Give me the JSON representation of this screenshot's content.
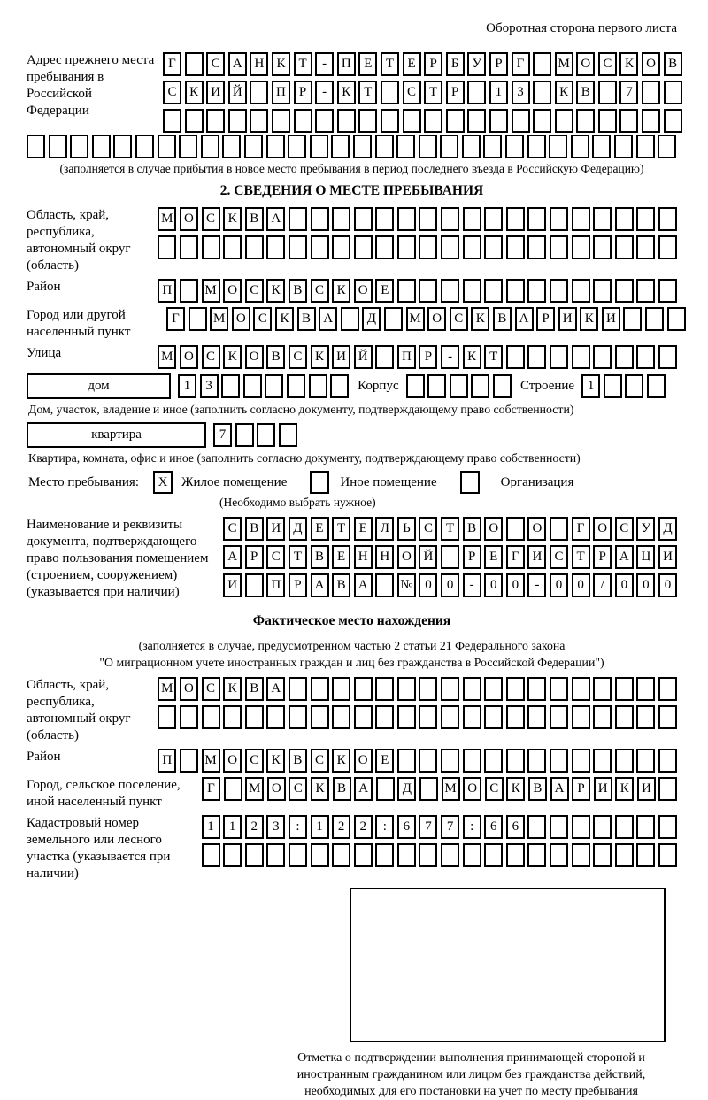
{
  "header_note": "Оборотная сторона первого листа",
  "prev_address": {
    "label": "Адрес прежнего места пребывания в Российской Федерации",
    "rows": [
      {
        "text": "Г САНКТ-ПЕТЕРБУРГ МОСКОВ",
        "count": 24
      },
      {
        "text": "СКИЙ ПР-КТ СТР 13 КВ 7",
        "count": 24
      },
      {
        "text": "",
        "count": 24
      }
    ],
    "full_row": {
      "text": "",
      "count": 30
    },
    "caption": "(заполняется в случае прибытия в новое место пребывания в период последнего въезда в Российскую Федерацию)"
  },
  "section2": {
    "title": "2. СВЕДЕНИЯ О МЕСТЕ ПРЕБЫВАНИЯ",
    "oblast": {
      "label": "Область, край, республика, автономный округ (область)",
      "rows": [
        {
          "text": "МОСКВА",
          "count": 24
        },
        {
          "text": "",
          "count": 24
        }
      ]
    },
    "raion": {
      "label": "Район",
      "cells": {
        "text": "П МОСКВСКОЕ",
        "count": 24
      }
    },
    "gorod": {
      "label": "Город или другой населенный пункт",
      "cells": {
        "text": "Г МОСКВА Д МОСКВАРИКИ",
        "count": 24
      }
    },
    "ulitsa": {
      "label": "Улица",
      "cells": {
        "text": "МОСКОВСКИЙ ПР-КТ",
        "count": 24
      }
    },
    "dom": {
      "box_label": "дом",
      "cells": {
        "text": "13",
        "count": 8
      },
      "korpus_label": "Корпус",
      "korpus_cells": {
        "text": "",
        "count": 5
      },
      "stroenie_label": "Строение",
      "stroenie_cells": {
        "text": "1",
        "count": 4
      }
    },
    "dom_caption": "Дом, участок, владение и иное (заполнить согласно документу, подтверждающему право собственности)",
    "kvartira": {
      "box_label": "квартира",
      "cells": {
        "text": "7",
        "count": 4
      }
    },
    "kvartira_caption": "Квартира, комната, офис и иное (заполнить согласно документу, подтверждающему право собственности)",
    "mesto": {
      "label": "Место пребывания:",
      "options": [
        {
          "label": "Жилое помещение",
          "checked": "X"
        },
        {
          "label": "Иное помещение",
          "checked": ""
        },
        {
          "label": "Организация",
          "checked": ""
        }
      ],
      "caption": "(Необходимо выбрать нужное)"
    },
    "doc": {
      "label": "Наименование и реквизиты документа, подтверждающего право пользования помещением (строением, сооружением) (указывается при наличии)",
      "rows": [
        {
          "text": "СВИДЕТЕЛЬСТВО О ГОСУД",
          "count": 21
        },
        {
          "text": "АРСТВЕННОЙ РЕГИСТРАЦИ",
          "count": 21
        },
        {
          "text": "И ПРАВА №00-00-00/000",
          "count": 21
        }
      ]
    }
  },
  "factual": {
    "title": "Фактическое место нахождения",
    "caption_line1": "(заполняется в случае, предусмотренном частью 2 статьи 21 Федерального закона",
    "caption_line2": "\"О миграционном учете иностранных граждан и лиц без гражданства в Российской Федерации\")",
    "oblast": {
      "label": "Область, край, республика, автономный округ (область)",
      "rows": [
        {
          "text": "МОСКВА",
          "count": 24
        },
        {
          "text": "",
          "count": 24
        }
      ]
    },
    "raion": {
      "label": "Район",
      "cells": {
        "text": "П МОСКВСКОЕ",
        "count": 24
      }
    },
    "gorod": {
      "label": "Город, сельское поселение, иной населенный пункт",
      "cells": {
        "text": "Г МОСКВА Д МОСКВАРИКИ",
        "count": 22
      }
    },
    "kadastr": {
      "label": "Кадастровый номер земельного или лесного участка (указывается при наличии)",
      "rows": [
        {
          "text": "1123:122:677:66",
          "count": 22
        },
        {
          "text": "",
          "count": 22
        }
      ]
    },
    "stamp_caption": "Отметка о подтверждении выполнения принимающей стороной и иностранным гражданином или лицом без гражданства действий, необходимых для его постановки на учет по месту пребывания"
  }
}
